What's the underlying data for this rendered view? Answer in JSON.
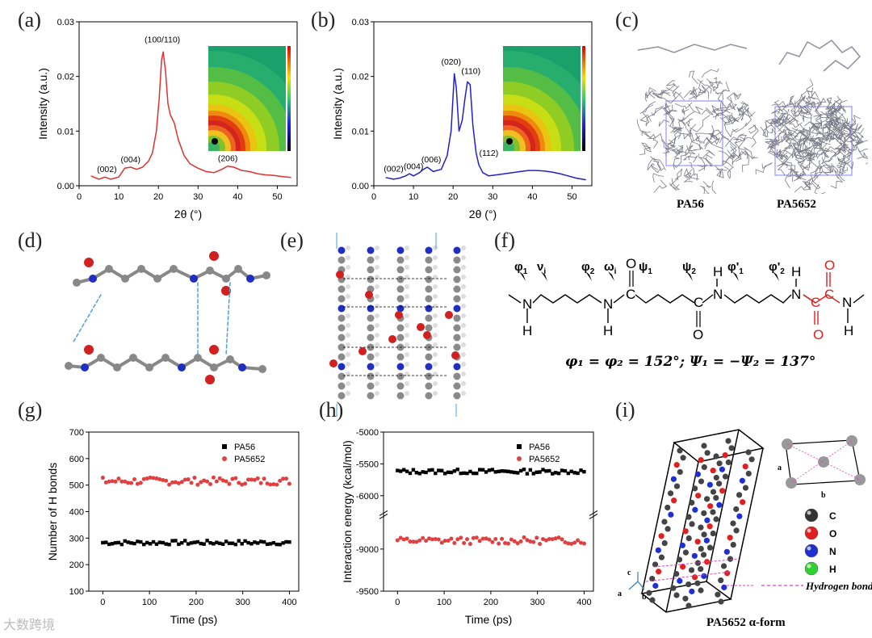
{
  "labels": {
    "a": "(a)",
    "b": "(b)",
    "c": "(c)",
    "d": "(d)",
    "e": "(e)",
    "f": "(f)",
    "g": "(g)",
    "h": "(h)",
    "i": "(i)"
  },
  "chart_data": [
    {
      "id": "a",
      "type": "line",
      "xlabel": "2θ (°)",
      "ylabel": "Intensity (a.u.)",
      "xlim": [
        0,
        55
      ],
      "ylim": [
        0,
        0.03
      ],
      "xticks": [
        "0",
        "10",
        "20",
        "30",
        "40",
        "50"
      ],
      "yticks": [
        "0.00",
        "0.01",
        "0.02",
        "0.03"
      ],
      "color": "#e03030",
      "x": [
        3,
        5,
        6.5,
        8,
        10,
        11.5,
        13,
        14.5,
        16,
        17.5,
        18.5,
        19.5,
        20.2,
        20.8,
        21.2,
        21.8,
        22.4,
        23,
        24,
        25,
        26.5,
        28,
        30,
        32,
        34,
        36,
        37.5,
        39,
        41,
        43,
        45,
        47,
        49,
        51,
        53.5
      ],
      "y": [
        0.0018,
        0.0012,
        0.0016,
        0.0012,
        0.0016,
        0.0032,
        0.0034,
        0.003,
        0.0034,
        0.0045,
        0.006,
        0.01,
        0.016,
        0.023,
        0.0245,
        0.021,
        0.015,
        0.013,
        0.0115,
        0.0085,
        0.0055,
        0.004,
        0.0032,
        0.0026,
        0.0024,
        0.003,
        0.0036,
        0.0034,
        0.0028,
        0.0026,
        0.0022,
        0.002,
        0.0019,
        0.0017,
        0.0015
      ],
      "annotations": [
        {
          "text": "(002)",
          "x": 7,
          "y": 0.0025
        },
        {
          "text": "(004)",
          "x": 13,
          "y": 0.0043
        },
        {
          "text": "(100/110)",
          "x": 21,
          "y": 0.0262
        },
        {
          "text": "(206)",
          "x": 37.5,
          "y": 0.0045
        }
      ]
    },
    {
      "id": "b",
      "type": "line",
      "xlabel": "2θ (°)",
      "ylabel": "Intensity (a.u.)",
      "xlim": [
        0,
        55
      ],
      "ylim": [
        0,
        0.03
      ],
      "xticks": [
        "0",
        "10",
        "20",
        "30",
        "40",
        "50"
      ],
      "yticks": [
        "0.00",
        "0.01",
        "0.02",
        "0.03"
      ],
      "color": "#2020d0",
      "x": [
        3,
        5,
        6.5,
        8,
        9,
        10,
        11.5,
        12.5,
        13.5,
        15,
        17,
        18.5,
        19.5,
        20.3,
        20.8,
        21.5,
        22.3,
        23,
        23.6,
        24.3,
        25,
        25.8,
        26.5,
        27.5,
        29,
        31,
        33,
        35,
        37,
        39,
        41,
        43,
        45,
        47,
        49,
        51,
        53.5
      ],
      "y": [
        0.0015,
        0.0012,
        0.0014,
        0.0018,
        0.0022,
        0.0018,
        0.0024,
        0.003,
        0.0034,
        0.0026,
        0.003,
        0.0055,
        0.01,
        0.0205,
        0.018,
        0.01,
        0.012,
        0.016,
        0.019,
        0.0185,
        0.011,
        0.006,
        0.0038,
        0.0024,
        0.0018,
        0.002,
        0.0022,
        0.0024,
        0.0026,
        0.0028,
        0.0028,
        0.0027,
        0.0025,
        0.0022,
        0.0018,
        0.0014,
        0.0011
      ],
      "annotations": [
        {
          "text": "(002)",
          "x": 5,
          "y": 0.0026
        },
        {
          "text": "(004)",
          "x": 10,
          "y": 0.003
        },
        {
          "text": "(006)",
          "x": 14.5,
          "y": 0.0043
        },
        {
          "text": "(020)",
          "x": 19.5,
          "y": 0.0222
        },
        {
          "text": "(110)",
          "x": 24.5,
          "y": 0.0205
        },
        {
          "text": "(112)",
          "x": 29,
          "y": 0.0055
        }
      ]
    },
    {
      "id": "g",
      "type": "scatter",
      "xlabel": "Time (ps)",
      "ylabel": "Number of H bonds",
      "xlim": [
        -30,
        420
      ],
      "ylim": [
        100,
        700
      ],
      "xticks": [
        "0",
        "100",
        "200",
        "300",
        "400"
      ],
      "yticks": [
        "100",
        "200",
        "300",
        "400",
        "500",
        "600",
        "700"
      ],
      "series": [
        {
          "name": "PA56",
          "color": "#000000",
          "marker": "square",
          "mean": 283,
          "amp": 8
        },
        {
          "name": "PA5652",
          "color": "#e04040",
          "marker": "circle",
          "mean": 515,
          "amp": 14
        }
      ],
      "n_points": 60,
      "x_range": [
        0,
        400
      ]
    },
    {
      "id": "h",
      "type": "scatter",
      "xlabel": "Time (ps)",
      "ylabel": "Interaction energy (kcal/mol)",
      "xlim": [
        -30,
        420
      ],
      "ylim": [
        -9500,
        -5000
      ],
      "xticks": [
        "0",
        "100",
        "200",
        "300",
        "400"
      ],
      "yticks": [
        "-5000",
        "-5500",
        "-6000",
        "-9000",
        "-9500"
      ],
      "axis_break": true,
      "series": [
        {
          "name": "PA56",
          "color": "#000000",
          "marker": "square",
          "mean": -5620,
          "amp": 35
        },
        {
          "name": "PA5652",
          "color": "#e04040",
          "marker": "circle",
          "mean": -8900,
          "amp": 40
        }
      ],
      "n_points": 60,
      "x_range": [
        0,
        400
      ]
    }
  ],
  "panel_c": {
    "left_caption": "PA56",
    "right_caption": "PA5652"
  },
  "panel_f": {
    "angles": [
      "φ",
      "1",
      "ν",
      "i",
      "φ",
      "2",
      "ω",
      "i",
      "ψ",
      "1",
      "ψ",
      "2",
      "φ'",
      "1",
      "φ'",
      "2"
    ],
    "atoms": {
      "N": "N",
      "H": "H",
      "C": "C",
      "O": "O"
    },
    "equation": "φ₁ = φ₂ = 152°; Ψ₁ = −Ψ₂ = 137°"
  },
  "panel_i": {
    "legend": [
      {
        "label": "C",
        "color": "#333333"
      },
      {
        "label": "O",
        "color": "#e02020"
      },
      {
        "label": "N",
        "color": "#2030d0"
      },
      {
        "label": "H",
        "color": "#30d030"
      }
    ],
    "hbond_label": "Hydrogen bonds",
    "caption": "PA5652 α-form",
    "axes": {
      "a": "a",
      "b": "b",
      "c": "c"
    }
  },
  "watermark": "大数跨境"
}
